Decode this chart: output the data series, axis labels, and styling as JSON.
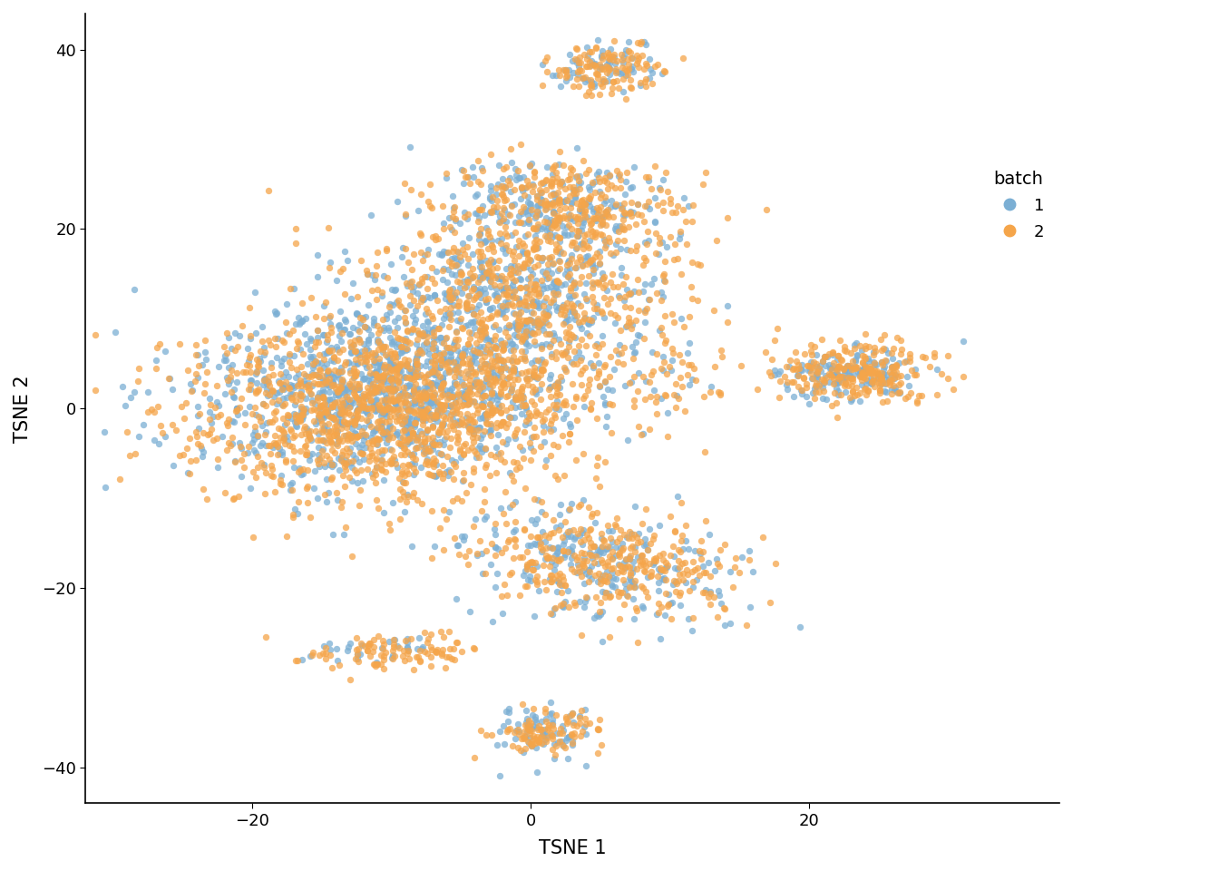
{
  "color_batch1": "#7bafd4",
  "color_batch2": "#f5a54a",
  "alpha": 0.75,
  "point_size": 28,
  "xlabel": "TSNE 1",
  "ylabel": "TSNE 2",
  "legend_title": "batch",
  "legend_labels": [
    "1",
    "2"
  ],
  "xlim": [
    -32,
    38
  ],
  "ylim": [
    -44,
    44
  ],
  "xticks": [
    -20,
    0,
    20
  ],
  "yticks": [
    -40,
    -20,
    0,
    20,
    40
  ],
  "background_color": "#ffffff",
  "axis_color": "#000000",
  "font_size": 15,
  "tick_font_size": 13,
  "seed": 42
}
